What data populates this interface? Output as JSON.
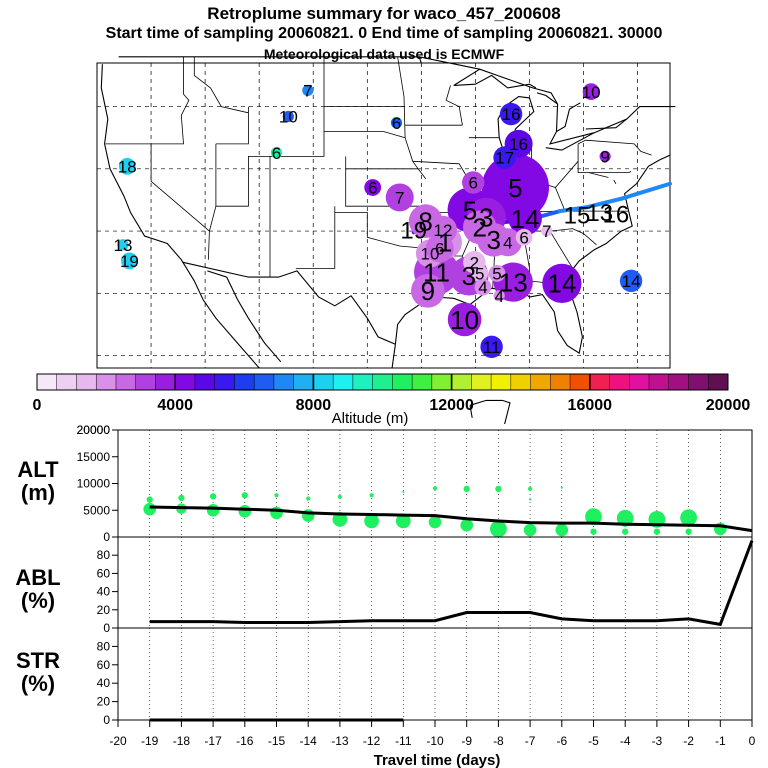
{
  "header": {
    "title": "Retroplume summary for waco_457_200608",
    "subtitle": "Start time of sampling 20060821.     0     End time of sampling 20060821. 30000",
    "met_line": "Meteorological data used is ECMWF"
  },
  "colorbar": {
    "labels": [
      "0",
      "4000",
      "8000",
      "12000",
      "16000",
      "20000"
    ],
    "xlabel": "Altitude  (m)",
    "colors": [
      "#f6e8f8",
      "#eed0f2",
      "#e6b8ee",
      "#d890e8",
      "#c868e4",
      "#b040e0",
      "#9a1ee0",
      "#8208e4",
      "#5a08e8",
      "#3a18f0",
      "#1e3cf0",
      "#1e5cf4",
      "#1e88f4",
      "#1eb0f0",
      "#1ed0f0",
      "#1ef0f0",
      "#1ef0c0",
      "#1ef090",
      "#1ef060",
      "#40f040",
      "#80f030",
      "#b0f030",
      "#e0f020",
      "#f0f000",
      "#f0d000",
      "#f0a800",
      "#f08000",
      "#f05000",
      "#f02050",
      "#f01080",
      "#e010a0",
      "#c01090",
      "#a01080",
      "#801070",
      "#601050"
    ]
  },
  "map": {
    "plume_numbers": [
      {
        "label": "7",
        "lon": -105.5,
        "lat": 46.3,
        "color": "#1e88f4",
        "r": 2
      },
      {
        "label": "10",
        "lon": -107.3,
        "lat": 44.2,
        "color": "#1e5cf4",
        "r": 2
      },
      {
        "label": "6",
        "lon": -97.3,
        "lat": 43.7,
        "color": "#1e5cf4",
        "r": 2
      },
      {
        "label": "6",
        "lon": -108.4,
        "lat": 41.3,
        "color": "#1ef0a0",
        "r": 2
      },
      {
        "label": "18",
        "lon": -122.2,
        "lat": 40.2,
        "color": "#1ed0f0",
        "r": 3
      },
      {
        "label": "6",
        "lon": -99.5,
        "lat": 38.5,
        "color": "#8208e4",
        "r": 3
      },
      {
        "label": "7",
        "lon": -97.0,
        "lat": 37.7,
        "color": "#b040e0",
        "r": 5
      },
      {
        "label": "10",
        "lon": -79.3,
        "lat": 46.2,
        "color": "#9a1ee0",
        "r": 3
      },
      {
        "label": "16",
        "lon": -86.7,
        "lat": 44.4,
        "color": "#3a18f0",
        "r": 4
      },
      {
        "label": "16",
        "lon": -86.0,
        "lat": 42.0,
        "color": "#5a08e8",
        "r": 5
      },
      {
        "label": "17",
        "lon": -87.3,
        "lat": 40.9,
        "color": "#3a18f0",
        "r": 4
      },
      {
        "label": "9",
        "lon": -78.0,
        "lat": 41.0,
        "color": "#9a1ee0",
        "r": 2
      },
      {
        "label": "5",
        "lon": -86.3,
        "lat": 38.5,
        "color": "#8208e4",
        "r": 12
      },
      {
        "label": "6",
        "lon": -90.2,
        "lat": 38.9,
        "color": "#b040e0",
        "r": 4
      },
      {
        "label": "13",
        "lon": -122.6,
        "lat": 33.9,
        "color": "#1ed0f0",
        "r": 2
      },
      {
        "label": "19",
        "lon": -122.0,
        "lat": 32.6,
        "color": "#1ed0f0",
        "r": 3
      },
      {
        "label": "11",
        "lon": -93.6,
        "lat": 31.7,
        "color": "#b040e0",
        "r": 8
      },
      {
        "label": "9",
        "lon": -94.4,
        "lat": 30.2,
        "color": "#c868e4",
        "r": 6
      },
      {
        "label": "2",
        "lon": -90.1,
        "lat": 32.5,
        "color": "#e6b8ee",
        "r": 4
      },
      {
        "label": "3",
        "lon": -90.6,
        "lat": 31.4,
        "color": "#b040e0",
        "r": 7
      },
      {
        "label": "5",
        "lon": -89.6,
        "lat": 31.6,
        "color": "#e6b8ee",
        "r": 3
      },
      {
        "label": "4",
        "lon": -89.3,
        "lat": 30.5,
        "color": "#d890e8",
        "r": 3
      },
      {
        "label": "5",
        "lon": -88.0,
        "lat": 31.6,
        "color": "#d890e8",
        "r": 3
      },
      {
        "label": "13",
        "lon": -86.5,
        "lat": 30.9,
        "color": "#9a1ee0",
        "r": 7
      },
      {
        "label": "4",
        "lon": -87.8,
        "lat": 29.8,
        "color": "#d890e8",
        "r": 2
      },
      {
        "label": "14",
        "lon": -82.0,
        "lat": 30.8,
        "color": "#8208e4",
        "r": 7
      },
      {
        "label": "10",
        "lon": -91.0,
        "lat": 27.9,
        "color": "#9a1ee0",
        "r": 6
      },
      {
        "label": "11",
        "lon": -88.5,
        "lat": 25.7,
        "color": "#3a18f0",
        "r": 4
      },
      {
        "label": "14",
        "lon": -75.6,
        "lat": 31.0,
        "color": "#1e5cf4",
        "r": 4
      },
      {
        "label": "6",
        "lon": -85.5,
        "lat": 34.5,
        "color": "#e6b8ee",
        "r": 3
      },
      {
        "label": "7",
        "lon": -83.4,
        "lat": 35.0,
        "color": "#e6b8ee",
        "r": 2
      },
      {
        "label": "5",
        "lon": -90.5,
        "lat": 36.7,
        "color": "#8208e4",
        "r": 8
      },
      {
        "label": "3",
        "lon": -89.0,
        "lat": 36.1,
        "color": "#9a1ee0",
        "r": 7
      },
      {
        "label": "4",
        "lon": -87.0,
        "lat": 34.1,
        "color": "#c868e4",
        "r": 5
      },
      {
        "label": "3",
        "lon": -88.3,
        "lat": 34.3,
        "color": "#c868e4",
        "r": 6
      },
      {
        "label": "2",
        "lon": -89.6,
        "lat": 35.3,
        "color": "#c868e4",
        "r": 6
      },
      {
        "label": "1",
        "lon": -92.8,
        "lat": 34.1,
        "color": "#d890e8",
        "r": 6
      },
      {
        "label": "8",
        "lon": -94.6,
        "lat": 35.8,
        "color": "#c868e4",
        "r": 6
      },
      {
        "label": "12",
        "lon": -93.0,
        "lat": 35.1,
        "color": "#c868e4",
        "r": 5
      },
      {
        "label": "10",
        "lon": -94.2,
        "lat": 33.2,
        "color": "#d890e8",
        "r": 5
      },
      {
        "label": "6",
        "lon": -93.3,
        "lat": 33.6,
        "color": "#c868e4",
        "r": 5
      },
      {
        "label": "14",
        "lon": -85.4,
        "lat": 36.0,
        "color": "#8208e4",
        "r": 6
      },
      {
        "label": "13",
        "lon": -78.5,
        "lat": 36.5,
        "color": "#1e5cf4",
        "r": 0
      },
      {
        "label": "15",
        "lon": -80.6,
        "lat": 36.3,
        "color": "#1e5cf4",
        "r": 0
      },
      {
        "label": "16",
        "lon": -77.0,
        "lat": 36.4,
        "color": "#1e5cf4",
        "r": 0
      },
      {
        "label": "19",
        "lon": -95.7,
        "lat": 35.1,
        "color": "#5a08e8",
        "r": 0
      }
    ]
  },
  "chart_data": [
    {
      "type": "scatter",
      "title": "ALT (m)",
      "ylabel": "ALT (m)",
      "ylim": [
        0,
        20000
      ],
      "yticks": [
        0,
        5000,
        10000,
        15000,
        20000
      ],
      "xlim": [
        -20,
        0
      ],
      "x": [
        -19,
        -18,
        -17,
        -16,
        -15,
        -14,
        -13,
        -12,
        -11,
        -10,
        -9,
        -8,
        -7,
        -6,
        -5,
        -4,
        -3,
        -2,
        -1,
        0
      ],
      "median_line": [
        5600,
        5500,
        5400,
        5200,
        5000,
        4500,
        4300,
        4200,
        4100,
        4000,
        3400,
        3000,
        2700,
        2600,
        2600,
        2400,
        2300,
        2200,
        2100,
        1200
      ],
      "bubbles": [
        {
          "x": -19,
          "y": 5200,
          "s": 6
        },
        {
          "x": -19,
          "y": 7000,
          "s": 3
        },
        {
          "x": -18,
          "y": 5300,
          "s": 5
        },
        {
          "x": -18,
          "y": 7300,
          "s": 3
        },
        {
          "x": -17,
          "y": 5000,
          "s": 6
        },
        {
          "x": -17,
          "y": 7600,
          "s": 3
        },
        {
          "x": -16,
          "y": 4800,
          "s": 6
        },
        {
          "x": -16,
          "y": 7800,
          "s": 3
        },
        {
          "x": -15,
          "y": 4500,
          "s": 6
        },
        {
          "x": -15,
          "y": 7800,
          "s": 2
        },
        {
          "x": -14,
          "y": 4000,
          "s": 6
        },
        {
          "x": -14,
          "y": 7200,
          "s": 2
        },
        {
          "x": -13,
          "y": 3300,
          "s": 7
        },
        {
          "x": -13,
          "y": 7500,
          "s": 2
        },
        {
          "x": -12,
          "y": 3000,
          "s": 7
        },
        {
          "x": -12,
          "y": 7800,
          "s": 2
        },
        {
          "x": -11,
          "y": 3000,
          "s": 7
        },
        {
          "x": -11,
          "y": 8400,
          "s": 1
        },
        {
          "x": -10,
          "y": 2800,
          "s": 6
        },
        {
          "x": -10,
          "y": 9100,
          "s": 2
        },
        {
          "x": -9,
          "y": 2200,
          "s": 6
        },
        {
          "x": -9,
          "y": 9000,
          "s": 3
        },
        {
          "x": -8,
          "y": 1500,
          "s": 8
        },
        {
          "x": -8,
          "y": 9000,
          "s": 3
        },
        {
          "x": -7,
          "y": 1300,
          "s": 6
        },
        {
          "x": -7,
          "y": 9000,
          "s": 2
        },
        {
          "x": -7,
          "y": 7000,
          "s": 1
        },
        {
          "x": -6,
          "y": 1300,
          "s": 6
        },
        {
          "x": -6,
          "y": 9200,
          "s": 1
        },
        {
          "x": -5,
          "y": 3800,
          "s": 8
        },
        {
          "x": -5,
          "y": 1000,
          "s": 3
        },
        {
          "x": -4,
          "y": 3500,
          "s": 8
        },
        {
          "x": -4,
          "y": 1000,
          "s": 3
        },
        {
          "x": -3,
          "y": 3300,
          "s": 8
        },
        {
          "x": -3,
          "y": 1000,
          "s": 3
        },
        {
          "x": -2,
          "y": 3600,
          "s": 8
        },
        {
          "x": -2,
          "y": 1000,
          "s": 3
        },
        {
          "x": -1,
          "y": 1500,
          "s": 6
        },
        {
          "x": -1,
          "y": 700,
          "s": 2
        }
      ]
    },
    {
      "type": "line",
      "title": "ABL (%)",
      "ylabel": "ABL (%)",
      "ylim": [
        0,
        100
      ],
      "yticks": [
        0,
        20,
        40,
        60,
        80
      ],
      "x": [
        -19,
        -18,
        -17,
        -16,
        -15,
        -14,
        -13,
        -12,
        -11,
        -10,
        -9,
        -8,
        -7,
        -6,
        -5,
        -4,
        -3,
        -2,
        -1,
        0
      ],
      "values": [
        7,
        7,
        7,
        6,
        6,
        6,
        7,
        8,
        8,
        8,
        17,
        17,
        17,
        10,
        8,
        8,
        8,
        10,
        4,
        96
      ]
    },
    {
      "type": "line",
      "title": "STR (%)",
      "ylabel": "STR (%)",
      "ylim": [
        0,
        100
      ],
      "yticks": [
        0,
        20,
        40,
        60,
        80
      ],
      "x": [
        -19,
        -18,
        -17,
        -16,
        -15,
        -14,
        -13,
        -12,
        -11
      ],
      "values": [
        0,
        0,
        0,
        0,
        0,
        0,
        0,
        0,
        0
      ]
    }
  ],
  "xaxis": {
    "label": "Travel time (days)",
    "ticks": [
      "-20",
      "-19",
      "-18",
      "-17",
      "-16",
      "-15",
      "-14",
      "-13",
      "-12",
      "-11",
      "-10",
      "-9",
      "-8",
      "-7",
      "-6",
      "-5",
      "-4",
      "-3",
      "-2",
      "-1",
      "0"
    ]
  },
  "panel_labels": {
    "alt_top": "ALT",
    "alt_bottom": "(m)",
    "abl_top": "ABL",
    "abl_bottom": "(%)",
    "str_top": "STR",
    "str_bottom": "(%)"
  }
}
